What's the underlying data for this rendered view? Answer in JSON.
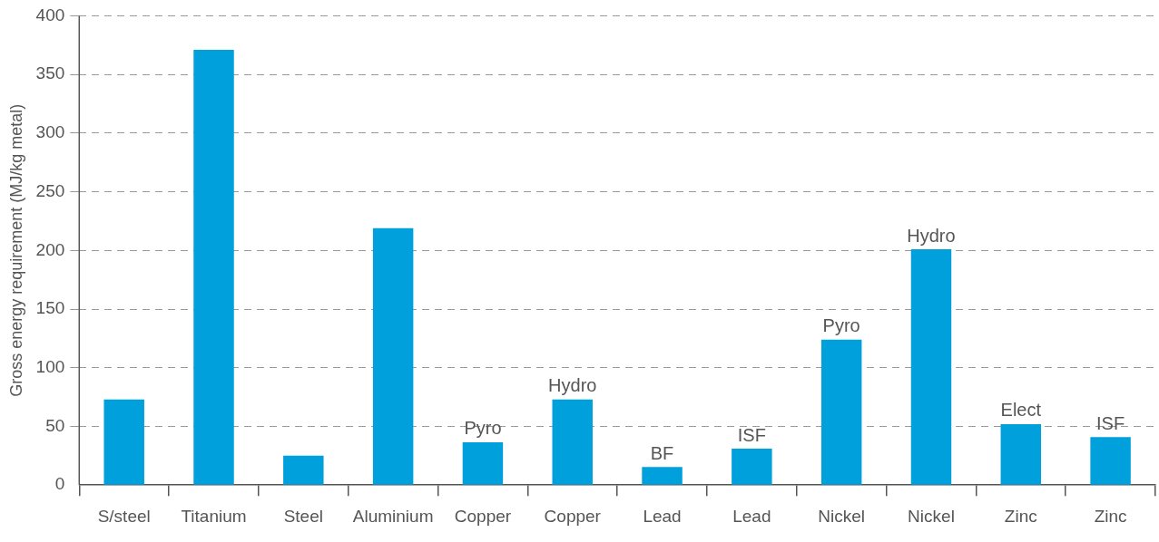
{
  "chart_data": {
    "type": "bar",
    "ylabel": "Gross energy requirement (MJ/kg metal)",
    "categories": [
      "S/steel",
      "Titanium",
      "Steel",
      "Aluminium",
      "Copper",
      "Copper",
      "Lead",
      "Lead",
      "Nickel",
      "Nickel",
      "Zinc",
      "Zinc"
    ],
    "values": [
      73,
      371,
      25,
      219,
      36.5,
      73,
      15.5,
      31,
      124,
      201,
      52,
      41
    ],
    "color": "#00a0dc",
    "ylim": [
      0,
      400
    ],
    "yticks": [
      0,
      50,
      100,
      150,
      200,
      250,
      300,
      350,
      400
    ],
    "grid": "y",
    "value_labels": [
      null,
      null,
      null,
      null,
      "Pyro",
      "Hydro",
      "BF",
      "ISF",
      "Pyro",
      "Hydro",
      "Elect",
      "ISF"
    ]
  }
}
